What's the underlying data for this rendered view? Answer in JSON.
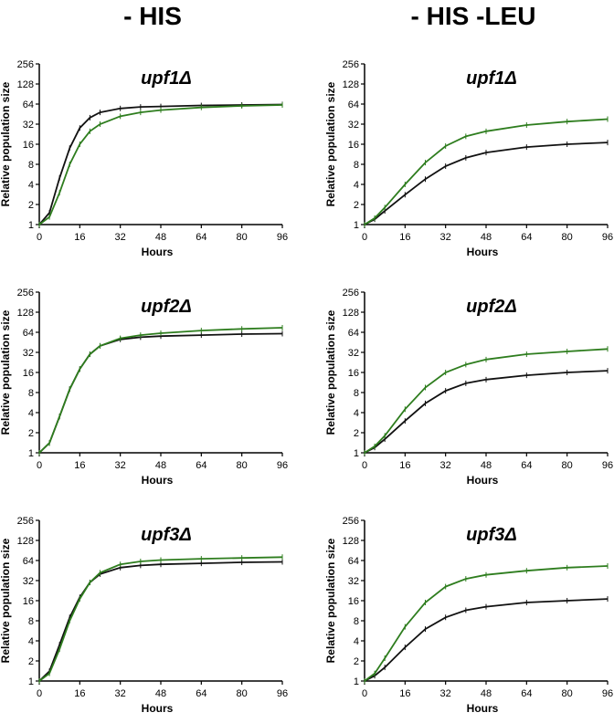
{
  "column_titles": [
    "- HIS",
    "- HIS -LEU"
  ],
  "series_colors": {
    "black": "#111111",
    "green": "#2e7d1e"
  },
  "chart_data": [
    {
      "type": "line",
      "title": "upf1Δ",
      "xlabel": "Hours",
      "ylabel": "Relative population size",
      "xlim": [
        0,
        96
      ],
      "ylim": [
        1,
        256
      ],
      "yscale": "log2",
      "x_ticks": [
        0,
        16,
        32,
        48,
        64,
        80,
        96
      ],
      "y_ticks": [
        1,
        2,
        4,
        8,
        16,
        32,
        64,
        128,
        256
      ],
      "series": [
        {
          "name": "black",
          "color": "#111111",
          "x": [
            0,
            4,
            8,
            12,
            16,
            20,
            24,
            32,
            40,
            48,
            64,
            80,
            96
          ],
          "y": [
            1,
            1.5,
            5,
            14,
            28,
            40,
            48,
            55,
            58,
            59,
            61,
            62,
            63
          ]
        },
        {
          "name": "green",
          "color": "#2e7d1e",
          "x": [
            0,
            4,
            8,
            12,
            16,
            20,
            24,
            32,
            40,
            48,
            64,
            80,
            96
          ],
          "y": [
            1,
            1.3,
            3,
            8,
            16,
            25,
            32,
            42,
            48,
            52,
            57,
            60,
            62
          ]
        }
      ]
    },
    {
      "type": "line",
      "title": "upf1Δ",
      "xlabel": "Hours",
      "ylabel": "Relative population size",
      "xlim": [
        0,
        96
      ],
      "ylim": [
        1,
        256
      ],
      "yscale": "log2",
      "x_ticks": [
        0,
        16,
        32,
        48,
        64,
        80,
        96
      ],
      "y_ticks": [
        1,
        2,
        4,
        8,
        16,
        32,
        64,
        128,
        256
      ],
      "series": [
        {
          "name": "black",
          "color": "#111111",
          "x": [
            0,
            4,
            8,
            16,
            24,
            32,
            40,
            48,
            64,
            80,
            96
          ],
          "y": [
            1,
            1.2,
            1.6,
            2.8,
            4.8,
            7.5,
            10,
            12,
            14.5,
            16,
            17
          ]
        },
        {
          "name": "green",
          "color": "#2e7d1e",
          "x": [
            0,
            4,
            8,
            16,
            24,
            32,
            40,
            48,
            64,
            80,
            96
          ],
          "y": [
            1,
            1.25,
            1.8,
            4,
            8.5,
            15,
            21,
            25,
            31,
            35,
            38
          ]
        }
      ]
    },
    {
      "type": "line",
      "title": "upf2Δ",
      "xlabel": "Hours",
      "ylabel": "Relative population size",
      "xlim": [
        0,
        96
      ],
      "ylim": [
        1,
        256
      ],
      "yscale": "log2",
      "x_ticks": [
        0,
        16,
        32,
        48,
        64,
        80,
        96
      ],
      "y_ticks": [
        1,
        2,
        4,
        8,
        16,
        32,
        64,
        128,
        256
      ],
      "series": [
        {
          "name": "black",
          "color": "#111111",
          "x": [
            0,
            4,
            8,
            12,
            16,
            20,
            24,
            32,
            40,
            48,
            64,
            80,
            96
          ],
          "y": [
            1,
            1.4,
            3.5,
            9,
            18,
            30,
            40,
            50,
            54,
            56,
            58,
            60,
            61
          ]
        },
        {
          "name": "green",
          "color": "#2e7d1e",
          "x": [
            0,
            4,
            8,
            12,
            16,
            20,
            24,
            32,
            40,
            48,
            64,
            80,
            96
          ],
          "y": [
            1,
            1.4,
            3.5,
            9,
            18,
            30,
            40,
            52,
            58,
            62,
            68,
            72,
            75
          ]
        }
      ]
    },
    {
      "type": "line",
      "title": "upf2Δ",
      "xlabel": "Hours",
      "ylabel": "Relative population size",
      "xlim": [
        0,
        96
      ],
      "ylim": [
        1,
        256
      ],
      "yscale": "log2",
      "x_ticks": [
        0,
        16,
        32,
        48,
        64,
        80,
        96
      ],
      "y_ticks": [
        1,
        2,
        4,
        8,
        16,
        32,
        64,
        128,
        256
      ],
      "series": [
        {
          "name": "black",
          "color": "#111111",
          "x": [
            0,
            4,
            8,
            16,
            24,
            32,
            40,
            48,
            64,
            80,
            96
          ],
          "y": [
            1,
            1.2,
            1.6,
            3,
            5.5,
            8.5,
            11,
            12.5,
            14.5,
            16,
            17
          ]
        },
        {
          "name": "green",
          "color": "#2e7d1e",
          "x": [
            0,
            4,
            8,
            16,
            24,
            32,
            40,
            48,
            64,
            80,
            96
          ],
          "y": [
            1,
            1.25,
            1.8,
            4.5,
            9.5,
            16,
            21,
            25,
            30,
            33,
            36
          ]
        }
      ]
    },
    {
      "type": "line",
      "title": "upf3Δ",
      "xlabel": "Hours",
      "ylabel": "Relative population size",
      "xlim": [
        0,
        96
      ],
      "ylim": [
        1,
        256
      ],
      "yscale": "log2",
      "x_ticks": [
        0,
        16,
        32,
        48,
        64,
        80,
        96
      ],
      "y_ticks": [
        1,
        2,
        4,
        8,
        16,
        32,
        64,
        128,
        256
      ],
      "series": [
        {
          "name": "black",
          "color": "#111111",
          "x": [
            0,
            4,
            8,
            12,
            16,
            20,
            24,
            32,
            40,
            48,
            64,
            80,
            96
          ],
          "y": [
            1,
            1.4,
            3.5,
            9,
            18,
            30,
            40,
            50,
            54,
            56,
            58,
            60,
            61
          ]
        },
        {
          "name": "green",
          "color": "#2e7d1e",
          "x": [
            0,
            4,
            8,
            12,
            16,
            20,
            24,
            32,
            40,
            48,
            64,
            80,
            96
          ],
          "y": [
            1,
            1.3,
            3,
            8,
            17,
            30,
            42,
            56,
            62,
            65,
            68,
            70,
            72
          ]
        }
      ]
    },
    {
      "type": "line",
      "title": "upf3Δ",
      "xlabel": "Hours",
      "ylabel": "Relative population size",
      "xlim": [
        0,
        96
      ],
      "ylim": [
        1,
        256
      ],
      "yscale": "log2",
      "x_ticks": [
        0,
        16,
        32,
        48,
        64,
        80,
        96
      ],
      "y_ticks": [
        1,
        2,
        4,
        8,
        16,
        32,
        64,
        128,
        256
      ],
      "series": [
        {
          "name": "black",
          "color": "#111111",
          "x": [
            0,
            4,
            8,
            16,
            24,
            32,
            40,
            48,
            64,
            80,
            96
          ],
          "y": [
            1,
            1.2,
            1.6,
            3.2,
            6,
            9,
            11.5,
            13,
            15,
            16,
            17
          ]
        },
        {
          "name": "green",
          "color": "#2e7d1e",
          "x": [
            0,
            4,
            8,
            16,
            24,
            32,
            40,
            48,
            64,
            80,
            96
          ],
          "y": [
            1,
            1.3,
            2.2,
            6.5,
            15,
            26,
            34,
            39,
            45,
            50,
            53
          ]
        }
      ]
    }
  ]
}
